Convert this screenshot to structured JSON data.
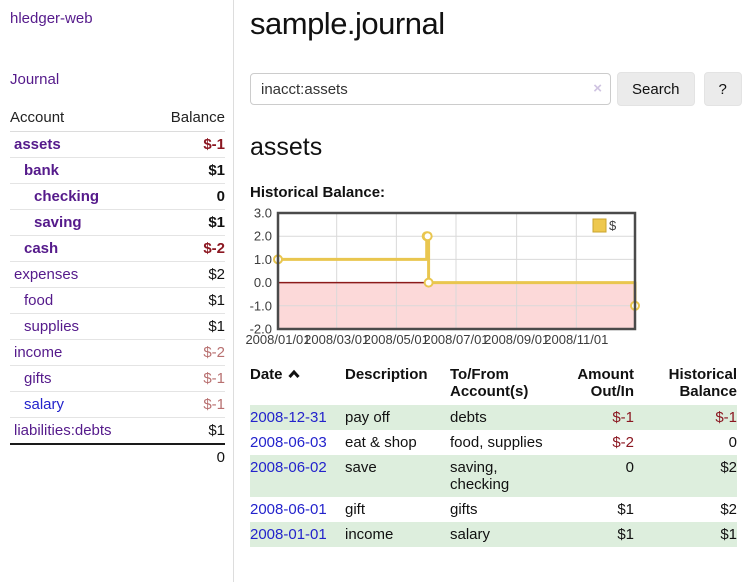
{
  "colors": {
    "purple": "#551a8b",
    "link_blue": "#2323cc",
    "neg_strong": "#8b1721",
    "neg_muted": "#b87070",
    "row_green": "#ddeedd",
    "border_gray": "#dddddd",
    "button_bg": "#ebebeb",
    "clear_x": "#cfc3e1",
    "chart_gold": "#e9c64f",
    "chart_gold_fill": "#eec84e",
    "chart_pink": "#fcd9d9",
    "chart_zero": "#8b1a1a",
    "chart_border": "#4a4a4a",
    "chart_grid": "#d9d9d9",
    "chart_text": "#3c3c3c"
  },
  "sidebar": {
    "brand": "hledger-web",
    "journal_label": "Journal",
    "columns": {
      "account": "Account",
      "balance": "Balance"
    },
    "accounts": [
      {
        "name": "assets",
        "depth": 1,
        "bold": true,
        "blue": false,
        "balance": "$-1",
        "balance_class": "neg"
      },
      {
        "name": "bank",
        "depth": 2,
        "bold": true,
        "blue": false,
        "balance": "$1",
        "balance_class": ""
      },
      {
        "name": "checking",
        "depth": 3,
        "bold": true,
        "blue": false,
        "balance": "0",
        "balance_class": ""
      },
      {
        "name": "saving",
        "depth": 3,
        "bold": true,
        "blue": false,
        "balance": "$1",
        "balance_class": ""
      },
      {
        "name": "cash",
        "depth": 2,
        "bold": true,
        "blue": false,
        "balance": "$-2",
        "balance_class": "neg"
      },
      {
        "name": "expenses",
        "depth": 1,
        "bold": false,
        "blue": false,
        "balance": "$2",
        "balance_class": ""
      },
      {
        "name": "food",
        "depth": 2,
        "bold": false,
        "blue": false,
        "balance": "$1",
        "balance_class": ""
      },
      {
        "name": "supplies",
        "depth": 2,
        "bold": false,
        "blue": false,
        "balance": "$1",
        "balance_class": ""
      },
      {
        "name": "income",
        "depth": 1,
        "bold": false,
        "blue": false,
        "balance": "$-2",
        "balance_class": "muted"
      },
      {
        "name": "gifts",
        "depth": 2,
        "bold": false,
        "blue": false,
        "balance": "$-1",
        "balance_class": "muted"
      },
      {
        "name": "salary",
        "depth": 2,
        "bold": false,
        "blue": true,
        "balance": "$-1",
        "balance_class": "muted"
      },
      {
        "name": "liabilities:debts",
        "depth": 1,
        "bold": false,
        "blue": false,
        "balance": "$1",
        "balance_class": ""
      }
    ],
    "total": "0"
  },
  "main": {
    "title": "sample.journal",
    "search": {
      "value": "inacct:assets",
      "clear_icon": "×",
      "button_label": "Search",
      "help_label": "?"
    },
    "account_heading": "assets",
    "chart_label": "Historical Balance:"
  },
  "chart_data": {
    "type": "line",
    "title": "Historical Balance",
    "step": true,
    "series": [
      {
        "name": "$",
        "points": [
          [
            "2008-01-01",
            1
          ],
          [
            "2008-06-01",
            2
          ],
          [
            "2008-06-02",
            2
          ],
          [
            "2008-06-03",
            0
          ],
          [
            "2008-12-31",
            -1
          ]
        ]
      }
    ],
    "x_range": [
      "2008-01-01",
      "2008-12-31"
    ],
    "x_ticks": [
      "2008/01/01",
      "2008/03/01",
      "2008/05/01",
      "2008/07/01",
      "2008/09/01",
      "2008/11/01"
    ],
    "y_ticks": [
      3.0,
      2.0,
      1.0,
      0.0,
      -1.0,
      -2.0
    ],
    "ylim": [
      -2.0,
      3.0
    ],
    "legend": {
      "label": "$",
      "position": "top-right"
    },
    "grid": true,
    "negative_region_shaded": true
  },
  "register": {
    "columns": [
      "Date",
      "Description",
      "To/From Account(s)",
      "Amount Out/In",
      "Historical Balance"
    ],
    "sort": {
      "column": "Date",
      "direction": "asc"
    },
    "rows": [
      {
        "date": "2008-12-31",
        "description": "pay off",
        "accounts": "debts",
        "amount": "$-1",
        "amount_class": "neg",
        "balance": "$-1",
        "balance_class": "neg"
      },
      {
        "date": "2008-06-03",
        "description": "eat & shop",
        "accounts": "food, supplies",
        "amount": "$-2",
        "amount_class": "neg",
        "balance": "0",
        "balance_class": ""
      },
      {
        "date": "2008-06-02",
        "description": "save",
        "accounts": "saving, checking",
        "amount": "0",
        "amount_class": "",
        "balance": "$2",
        "balance_class": ""
      },
      {
        "date": "2008-06-01",
        "description": "gift",
        "accounts": "gifts",
        "amount": "$1",
        "amount_class": "",
        "balance": "$2",
        "balance_class": ""
      },
      {
        "date": "2008-01-01",
        "description": "income",
        "accounts": "salary",
        "amount": "$1",
        "amount_class": "",
        "balance": "$1",
        "balance_class": ""
      }
    ]
  }
}
